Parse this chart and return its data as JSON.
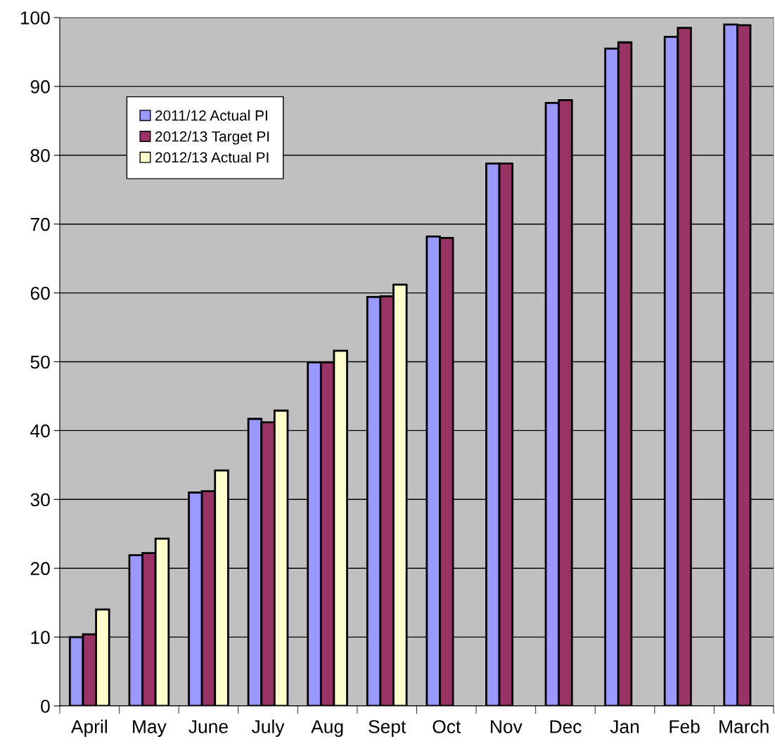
{
  "chart_data": {
    "type": "bar",
    "categories": [
      "April",
      "May",
      "June",
      "July",
      "Aug",
      "Sept",
      "Oct",
      "Nov",
      "Dec",
      "Jan",
      "Feb",
      "March"
    ],
    "series": [
      {
        "name": "2011/12 Actual PI",
        "color": "#9999ff",
        "values": [
          10.0,
          21.9,
          31.0,
          41.7,
          49.9,
          59.4,
          68.2,
          78.8,
          87.6,
          95.5,
          97.2,
          99.0
        ]
      },
      {
        "name": "2012/13 Target PI",
        "color": "#993366",
        "values": [
          10.4,
          22.2,
          31.2,
          41.2,
          49.9,
          59.5,
          68.0,
          78.8,
          88.0,
          96.4,
          98.5,
          98.9
        ]
      },
      {
        "name": "2012/13 Actual PI",
        "color": "#ffffcc",
        "values": [
          14.0,
          24.3,
          34.2,
          42.9,
          51.6,
          61.2,
          null,
          null,
          null,
          null,
          null,
          null
        ]
      }
    ],
    "ylim": [
      0,
      100
    ],
    "yticks": [
      0,
      10,
      20,
      30,
      40,
      50,
      60,
      70,
      80,
      90,
      100
    ],
    "grid": "y",
    "legend": "top left"
  }
}
